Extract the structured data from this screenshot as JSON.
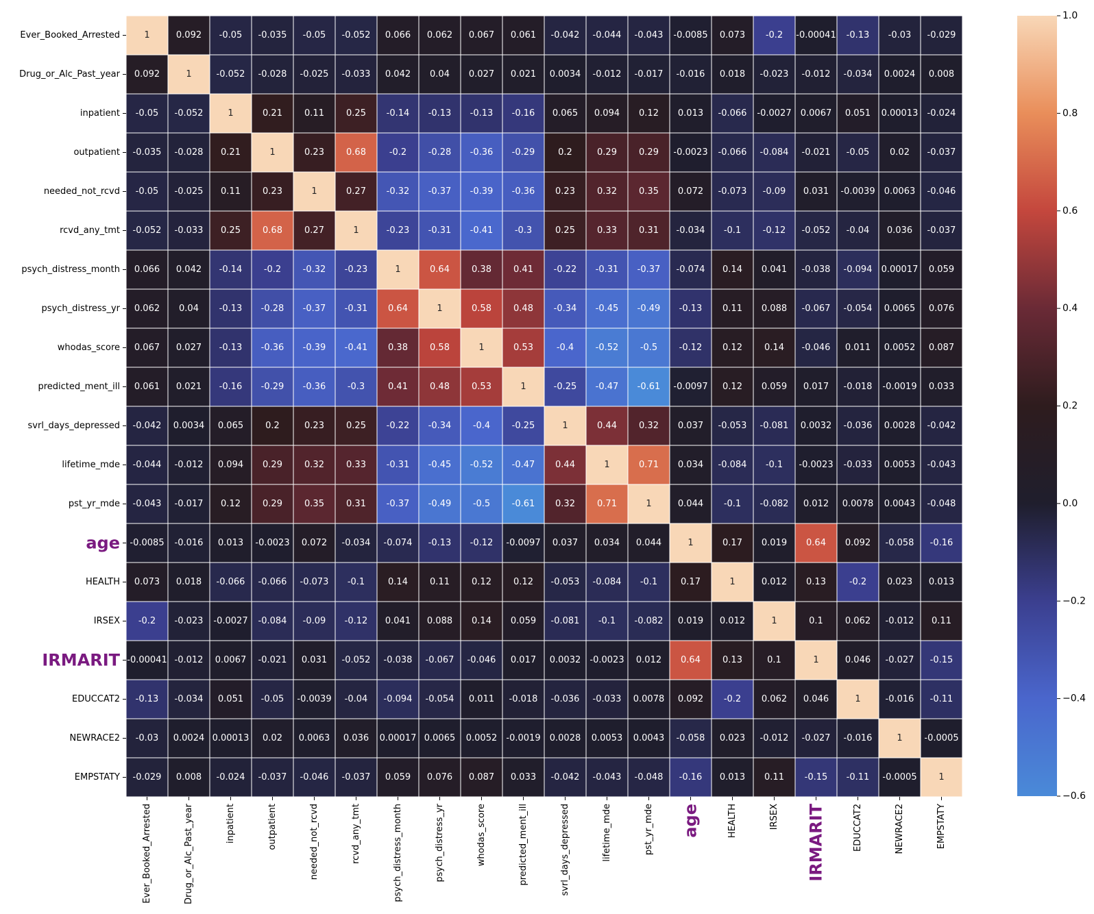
{
  "chart_data": {
    "type": "heatmap",
    "labels": [
      "Ever_Booked_Arrested",
      "Drug_or_Alc_Past_year",
      "inpatient",
      "outpatient",
      "needed_not_rcvd",
      "rcvd_any_tmt",
      "psych_distress_month",
      "psych_distress_yr",
      "whodas_score",
      "predicted_ment_ill",
      "svrl_days_depressed",
      "lifetime_mde",
      "pst_yr_mde",
      "age",
      "HEALTH",
      "IRSEX",
      "IRMARIT",
      "EDUCCAT2",
      "NEWRACE2",
      "EMPSTATY"
    ],
    "highlighted_labels": [
      "age",
      "IRMARIT"
    ],
    "highlight_color": "#7a1a80",
    "values": [
      [
        1,
        0.092,
        -0.05,
        -0.035,
        -0.05,
        -0.052,
        0.066,
        0.062,
        0.067,
        0.061,
        -0.042,
        -0.044,
        -0.043,
        -0.0085,
        0.073,
        -0.2,
        -0.00041,
        -0.13,
        -0.03,
        -0.029
      ],
      [
        0.092,
        1,
        -0.052,
        -0.028,
        -0.025,
        -0.033,
        0.042,
        0.04,
        0.027,
        0.021,
        0.0034,
        -0.012,
        -0.017,
        -0.016,
        0.018,
        -0.023,
        -0.012,
        -0.034,
        0.0024,
        0.008
      ],
      [
        -0.05,
        -0.052,
        1,
        0.21,
        0.11,
        0.25,
        -0.14,
        -0.13,
        -0.13,
        -0.16,
        0.065,
        0.094,
        0.12,
        0.013,
        -0.066,
        -0.0027,
        0.0067,
        0.051,
        0.00013,
        -0.024
      ],
      [
        -0.035,
        -0.028,
        0.21,
        1,
        0.23,
        0.68,
        -0.2,
        -0.28,
        -0.36,
        -0.29,
        0.2,
        0.29,
        0.29,
        -0.0023,
        -0.066,
        -0.084,
        -0.021,
        -0.05,
        0.02,
        -0.037
      ],
      [
        -0.05,
        -0.025,
        0.11,
        0.23,
        1,
        0.27,
        -0.32,
        -0.37,
        -0.39,
        -0.36,
        0.23,
        0.32,
        0.35,
        0.072,
        -0.073,
        -0.09,
        0.031,
        -0.0039,
        0.0063,
        -0.046
      ],
      [
        -0.052,
        -0.033,
        0.25,
        0.68,
        0.27,
        1,
        -0.23,
        -0.31,
        -0.41,
        -0.3,
        0.25,
        0.33,
        0.31,
        -0.034,
        -0.1,
        -0.12,
        -0.052,
        -0.04,
        0.036,
        -0.037
      ],
      [
        0.066,
        0.042,
        -0.14,
        -0.2,
        -0.32,
        -0.23,
        1,
        0.64,
        0.38,
        0.41,
        -0.22,
        -0.31,
        -0.37,
        -0.074,
        0.14,
        0.041,
        -0.038,
        -0.094,
        0.00017,
        0.059
      ],
      [
        0.062,
        0.04,
        -0.13,
        -0.28,
        -0.37,
        -0.31,
        0.64,
        1,
        0.58,
        0.48,
        -0.34,
        -0.45,
        -0.49,
        -0.13,
        0.11,
        0.088,
        -0.067,
        -0.054,
        0.0065,
        0.076
      ],
      [
        0.067,
        0.027,
        -0.13,
        -0.36,
        -0.39,
        -0.41,
        0.38,
        0.58,
        1,
        0.53,
        -0.4,
        -0.52,
        -0.5,
        -0.12,
        0.12,
        0.14,
        -0.046,
        0.011,
        0.0052,
        0.087
      ],
      [
        0.061,
        0.021,
        -0.16,
        -0.29,
        -0.36,
        -0.3,
        0.41,
        0.48,
        0.53,
        1,
        -0.25,
        -0.47,
        -0.61,
        -0.0097,
        0.12,
        0.059,
        0.017,
        -0.018,
        -0.0019,
        0.033
      ],
      [
        -0.042,
        0.0034,
        0.065,
        0.2,
        0.23,
        0.25,
        -0.22,
        -0.34,
        -0.4,
        -0.25,
        1,
        0.44,
        0.32,
        0.037,
        -0.053,
        -0.081,
        0.0032,
        -0.036,
        0.0028,
        -0.042
      ],
      [
        -0.044,
        -0.012,
        0.094,
        0.29,
        0.32,
        0.33,
        -0.31,
        -0.45,
        -0.52,
        -0.47,
        0.44,
        1,
        0.71,
        0.034,
        -0.084,
        -0.1,
        -0.0023,
        -0.033,
        0.0053,
        -0.043
      ],
      [
        -0.043,
        -0.017,
        0.12,
        0.29,
        0.35,
        0.31,
        -0.37,
        -0.49,
        -0.5,
        -0.61,
        0.32,
        0.71,
        1,
        0.044,
        -0.1,
        -0.082,
        0.012,
        0.0078,
        0.0043,
        -0.048
      ],
      [
        -0.0085,
        -0.016,
        0.013,
        -0.0023,
        0.072,
        -0.034,
        -0.074,
        -0.13,
        -0.12,
        -0.0097,
        0.037,
        0.034,
        0.044,
        1,
        0.17,
        0.019,
        0.64,
        0.092,
        -0.058,
        -0.16
      ],
      [
        0.073,
        0.018,
        -0.066,
        -0.066,
        -0.073,
        -0.1,
        0.14,
        0.11,
        0.12,
        0.12,
        -0.053,
        -0.084,
        -0.1,
        0.17,
        1,
        0.012,
        0.13,
        -0.2,
        0.023,
        0.013
      ],
      [
        -0.2,
        -0.023,
        -0.0027,
        -0.084,
        -0.09,
        -0.12,
        0.041,
        0.088,
        0.14,
        0.059,
        -0.081,
        -0.1,
        -0.082,
        0.019,
        0.012,
        1,
        0.1,
        0.062,
        -0.012,
        0.11
      ],
      [
        -0.00041,
        -0.012,
        0.0067,
        -0.021,
        0.031,
        -0.052,
        -0.038,
        -0.067,
        -0.046,
        0.017,
        0.0032,
        -0.0023,
        0.012,
        0.64,
        0.13,
        0.1,
        1,
        0.046,
        -0.027,
        -0.15
      ],
      [
        -0.13,
        -0.034,
        0.051,
        -0.05,
        -0.0039,
        -0.04,
        -0.094,
        -0.054,
        0.011,
        -0.018,
        -0.036,
        -0.033,
        0.0078,
        0.092,
        -0.2,
        0.062,
        0.046,
        1,
        -0.016,
        -0.11
      ],
      [
        -0.03,
        0.0024,
        0.00013,
        0.02,
        0.0063,
        0.036,
        0.00017,
        0.0065,
        0.0052,
        -0.0019,
        0.0028,
        0.0053,
        0.0043,
        -0.058,
        0.023,
        -0.012,
        -0.027,
        -0.016,
        1,
        -0.0005
      ],
      [
        -0.029,
        0.008,
        -0.024,
        -0.037,
        -0.046,
        -0.037,
        0.059,
        0.076,
        0.087,
        0.033,
        -0.042,
        -0.043,
        -0.048,
        -0.16,
        0.013,
        0.11,
        -0.15,
        -0.11,
        -0.0005,
        1
      ]
    ],
    "colorbar": {
      "range": [
        -0.6,
        1.0
      ],
      "ticks": [
        1.0,
        0.8,
        0.6,
        0.4,
        0.2,
        0.0,
        -0.2,
        -0.4,
        -0.6
      ],
      "tick_labels": [
        "1.0",
        "0.8",
        "0.6",
        "0.4",
        "0.2",
        "0.0",
        "−0.2",
        "−0.4",
        "−0.6"
      ],
      "colormap": "icefire"
    },
    "annotations": true,
    "gridlines": "white",
    "title": "",
    "xlabel": "",
    "ylabel": ""
  }
}
